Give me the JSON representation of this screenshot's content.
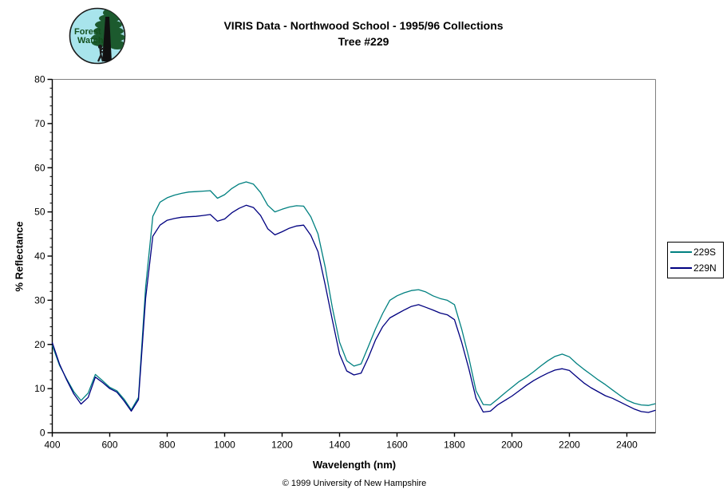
{
  "header": {
    "title_line1": "VIRIS Data - Northwood School - 1995/96 Collections",
    "title_line2": "Tree #229"
  },
  "logo": {
    "text_line1": "Forest",
    "text_line2": "Watch",
    "bg_color": "#a8e4ec",
    "foliage_color": "#1c5a2e",
    "text_color": "#14501e"
  },
  "footer": {
    "copyright": "© 1999 University of New Hampshire"
  },
  "legend": {
    "items": [
      {
        "label": "229S",
        "color": "#008080"
      },
      {
        "label": "229N",
        "color": "#000080"
      }
    ]
  },
  "chart_data": {
    "type": "line",
    "title": "VIRIS Data - Northwood School - 1995/96 Collections - Tree #229",
    "xlabel": "Wavelength (nm)",
    "ylabel": "% Reflectance",
    "xlim": [
      400,
      2500
    ],
    "ylim": [
      0,
      80
    ],
    "x_ticks": [
      400,
      600,
      800,
      1000,
      1200,
      1400,
      1600,
      1800,
      2000,
      2200,
      2400
    ],
    "y_ticks": [
      0,
      10,
      20,
      30,
      40,
      50,
      60,
      70,
      80
    ],
    "y_minor_step": 2,
    "grid": false,
    "legend_position": "right-outside",
    "frame_color": "#808080",
    "axis_color": "#000000",
    "x_start": 400,
    "x_step": 25,
    "series": [
      {
        "name": "229S",
        "color": "#008080",
        "values": [
          19.8,
          15.3,
          12.2,
          9.3,
          7.3,
          9.0,
          13.2,
          11.8,
          10.3,
          9.5,
          7.6,
          5.2,
          8.0,
          33.0,
          49.0,
          52.2,
          53.2,
          53.8,
          54.2,
          54.5,
          54.6,
          54.7,
          54.8,
          53.1,
          53.9,
          55.3,
          56.3,
          56.8,
          56.3,
          54.4,
          51.5,
          50.0,
          50.6,
          51.1,
          51.4,
          51.3,
          48.9,
          45.0,
          37.5,
          28.3,
          20.5,
          16.3,
          15.1,
          15.6,
          19.5,
          23.5,
          27.0,
          30.0,
          31.0,
          31.7,
          32.2,
          32.4,
          31.9,
          31.0,
          30.4,
          30.0,
          29.0,
          23.5,
          17.0,
          9.5,
          6.4,
          6.3,
          7.6,
          9.0,
          10.3,
          11.6,
          12.6,
          13.8,
          15.1,
          16.3,
          17.3,
          17.8,
          17.2,
          15.7,
          14.4,
          13.2,
          12.0,
          10.9,
          9.7,
          8.5,
          7.4,
          6.7,
          6.3,
          6.2,
          6.6
        ]
      },
      {
        "name": "229N",
        "color": "#000080",
        "values": [
          20.4,
          15.6,
          12.0,
          8.8,
          6.5,
          8.0,
          12.6,
          11.4,
          10.0,
          9.2,
          7.2,
          4.9,
          7.5,
          30.5,
          44.5,
          47.0,
          48.1,
          48.5,
          48.8,
          48.9,
          49.0,
          49.2,
          49.4,
          47.9,
          48.4,
          49.8,
          50.8,
          51.5,
          51.0,
          49.2,
          46.2,
          44.8,
          45.5,
          46.3,
          46.8,
          47.0,
          44.7,
          41.0,
          33.5,
          25.5,
          17.8,
          14.0,
          13.1,
          13.5,
          17.0,
          21.0,
          24.0,
          26.0,
          26.9,
          27.8,
          28.6,
          29.0,
          28.4,
          27.8,
          27.1,
          26.7,
          25.6,
          20.5,
          14.5,
          7.8,
          4.7,
          4.9,
          6.3,
          7.3,
          8.3,
          9.5,
          10.7,
          11.8,
          12.7,
          13.5,
          14.2,
          14.5,
          14.1,
          12.7,
          11.3,
          10.2,
          9.3,
          8.4,
          7.8,
          7.0,
          6.2,
          5.4,
          4.8,
          4.6,
          5.1
        ]
      }
    ]
  }
}
